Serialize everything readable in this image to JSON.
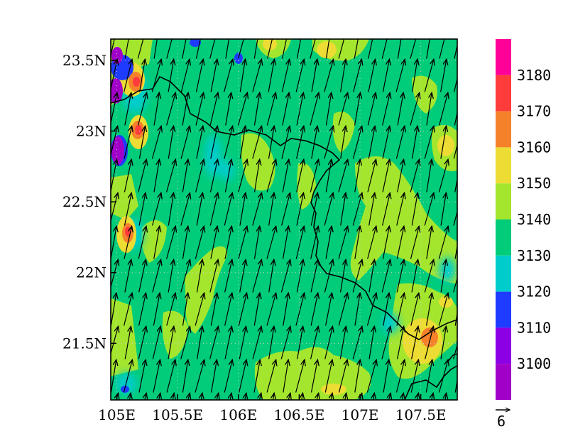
{
  "map": {
    "lon_range": [
      104.95,
      107.8
    ],
    "lat_range": [
      21.1,
      23.65
    ],
    "x_ticks": [
      {
        "value": 105.0,
        "label": "105E"
      },
      {
        "value": 105.5,
        "label": "105.5E"
      },
      {
        "value": 106.0,
        "label": "106E"
      },
      {
        "value": 106.5,
        "label": "106.5E"
      },
      {
        "value": 107.0,
        "label": "107E"
      },
      {
        "value": 107.5,
        "label": "107.5E"
      }
    ],
    "y_ticks": [
      {
        "value": 23.5,
        "label": "23.5N"
      },
      {
        "value": 23.0,
        "label": "23N"
      },
      {
        "value": 22.5,
        "label": "22.5N"
      },
      {
        "value": 22.0,
        "label": "22N"
      },
      {
        "value": 21.5,
        "label": "21.5N"
      }
    ],
    "background_level_color": "#00cc7a",
    "wind_reference_vector": {
      "label": "6"
    },
    "grid": true
  },
  "colorbar": {
    "bins": [
      {
        "color": "#ff0099",
        "label": ""
      },
      {
        "color": "#ff3c3c",
        "label": "3180"
      },
      {
        "color": "#f5822b",
        "label": "3170"
      },
      {
        "color": "#ecdc33",
        "label": "3160"
      },
      {
        "color": "#a4e62e",
        "label": "3150"
      },
      {
        "color": "#00cc7a",
        "label": "3140"
      },
      {
        "color": "#00cccc",
        "label": "3130"
      },
      {
        "color": "#1e3cff",
        "label": "3120"
      },
      {
        "color": "#8c00e6",
        "label": "3110"
      },
      {
        "color": "#a000c8",
        "label": "3100"
      }
    ]
  },
  "chart_data": {
    "type": "heatmap",
    "title": "",
    "xlabel": "",
    "ylabel": "",
    "xlim": [
      104.95,
      107.8
    ],
    "ylim": [
      21.1,
      23.65
    ],
    "levels": [
      3100,
      3110,
      3120,
      3130,
      3140,
      3150,
      3160,
      3170,
      3180
    ],
    "features": [
      {
        "lon": 105.05,
        "lat": 23.25,
        "value": 3100
      },
      {
        "lon": 104.98,
        "lat": 22.85,
        "value": 3100
      },
      {
        "lon": 105.1,
        "lat": 23.3,
        "value": 3175
      },
      {
        "lon": 105.12,
        "lat": 22.98,
        "value": 3175
      },
      {
        "lon": 105.05,
        "lat": 22.25,
        "value": 3175
      },
      {
        "lon": 107.5,
        "lat": 21.5,
        "value": 3175
      },
      {
        "lon": 106.0,
        "lat": 22.75,
        "value": 3145
      },
      {
        "lon": 105.35,
        "lat": 21.8,
        "value": 3145
      },
      {
        "lon": 107.3,
        "lat": 22.2,
        "value": 3145
      },
      {
        "lon": 106.5,
        "lat": 21.2,
        "value": 3145
      },
      {
        "lon": 107.7,
        "lat": 22.9,
        "value": 3165
      }
    ],
    "wind": {
      "u_typical": -1.3,
      "v_typical": 6.0,
      "reference": 6
    }
  }
}
